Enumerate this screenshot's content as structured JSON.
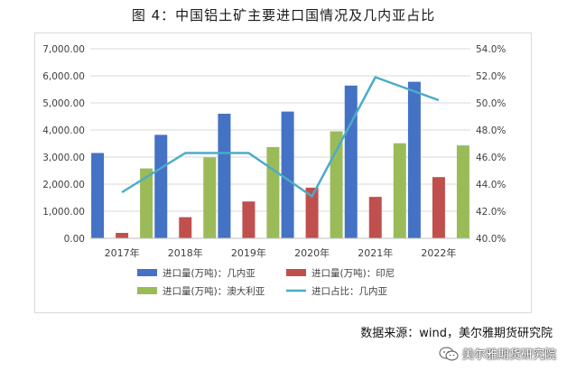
{
  "title": "图 4：中国铝土矿主要进口国情况及几内亚占比",
  "source": "数据来源：wind，美尔雅期货研究院",
  "watermark": {
    "icon": "wechat-icon",
    "text": "美尔雅期货研究院"
  },
  "chart_data": {
    "type": "bar",
    "categories": [
      "2017年",
      "2018年",
      "2019年",
      "2020年",
      "2021年",
      "2022年"
    ],
    "series": [
      {
        "name": "进口量(万吨)：几内亚",
        "type": "bar",
        "axis": "left",
        "color": "#4472C4",
        "values": [
          3150,
          3820,
          4600,
          4680,
          5640,
          5780
        ]
      },
      {
        "name": "进口量(万吨)：印尼",
        "type": "bar",
        "axis": "left",
        "color": "#C0504D",
        "values": [
          200,
          780,
          1360,
          1870,
          1530,
          2260
        ]
      },
      {
        "name": "进口量(万吨)：澳大利亚",
        "type": "bar",
        "axis": "left",
        "color": "#9BBB59",
        "values": [
          2580,
          2990,
          3370,
          3950,
          3510,
          3430
        ]
      },
      {
        "name": "进口占比：几内亚",
        "type": "line",
        "axis": "right",
        "color": "#4BACC6",
        "values": [
          43.4,
          46.3,
          46.3,
          43.1,
          51.9,
          50.2
        ]
      }
    ],
    "ylim_left": [
      0,
      7000
    ],
    "ylim_right": [
      40,
      54
    ],
    "yticks_left": [
      "0.00",
      "1,000.00",
      "2,000.00",
      "3,000.00",
      "4,000.00",
      "5,000.00",
      "6,000.00",
      "7,000.00"
    ],
    "yticks_right": [
      "40.0%",
      "42.0%",
      "44.0%",
      "46.0%",
      "48.0%",
      "50.0%",
      "52.0%",
      "54.0%"
    ],
    "legend_position": "bottom",
    "grid": true
  }
}
